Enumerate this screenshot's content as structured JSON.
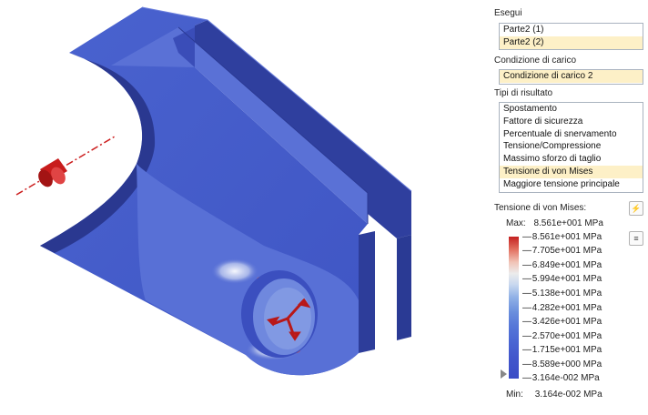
{
  "panel": {
    "runs_label": "Esegui",
    "runs": [
      {
        "label": "Parte2 (1)",
        "selected": false
      },
      {
        "label": "Parte2 (2)",
        "selected": true
      }
    ],
    "loadcase_label": "Condizione di carico",
    "loadcase_value": "Condizione di carico 2",
    "result_types_label": "Tipi di risultato",
    "result_types": [
      {
        "label": "Spostamento",
        "selected": false
      },
      {
        "label": "Fattore di sicurezza",
        "selected": false
      },
      {
        "label": "Percentuale di snervamento",
        "selected": false
      },
      {
        "label": "Tensione/Compressione",
        "selected": false
      },
      {
        "label": "Massimo sforzo di taglio",
        "selected": false
      },
      {
        "label": "Tensione di von Mises",
        "selected": true
      },
      {
        "label": "Maggiore tensione principale",
        "selected": false
      }
    ],
    "legend_title": "Tensione di von Mises:",
    "flash_icon": "lightning-icon",
    "menu_icon": "hamburger-menu-icon",
    "max_label": "Max:",
    "max_value": "8.561e+001 MPa",
    "min_label": "Min:",
    "min_value": "3.164e-002 MPa",
    "ticks": [
      "8.561e+001 MPa",
      "7.705e+001 MPa",
      "6.849e+001 MPa",
      "5.994e+001 MPa",
      "5.138e+001 MPa",
      "4.282e+001 MPa",
      "3.426e+001 MPa",
      "2.570e+001 MPa",
      "1.715e+001 MPa",
      "8.589e+000 MPa",
      "3.164e-002 MPa"
    ],
    "colors": {
      "max": "#c42020",
      "min": "#3a4cc6",
      "selection": "#fdf0c7"
    }
  }
}
